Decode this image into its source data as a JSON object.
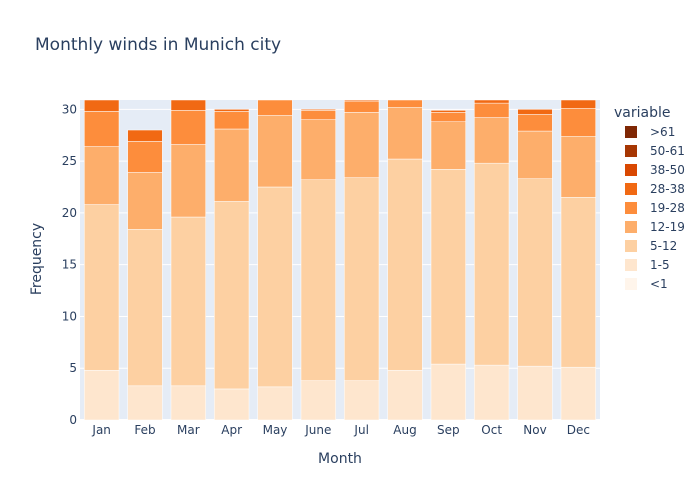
{
  "chart_data": {
    "type": "bar",
    "barmode": "stack",
    "title": "Monthly winds in Munich city",
    "xlabel": "Month",
    "ylabel": "Frequency",
    "ylim": [
      0,
      30.9
    ],
    "yticks": [
      0,
      5,
      10,
      15,
      20,
      25,
      30
    ],
    "legend_title": "variable",
    "legend_position": "right",
    "categories": [
      "Jan",
      "Feb",
      "Mar",
      "Apr",
      "May",
      "June",
      "Jul",
      "Aug",
      "Sep",
      "Oct",
      "Nov",
      "Dec"
    ],
    "series": [
      {
        "name": "<1",
        "color": "#fff5eb",
        "values": [
          0,
          0,
          0,
          0,
          0,
          0,
          0,
          0,
          0,
          0,
          0,
          0
        ]
      },
      {
        "name": "1-5",
        "color": "#fee6ce",
        "values": [
          4.8,
          3.3,
          3.3,
          3.0,
          3.2,
          3.8,
          3.8,
          4.8,
          5.4,
          5.3,
          5.2,
          5.1
        ]
      },
      {
        "name": "5-12",
        "color": "#fdd0a2",
        "values": [
          16.0,
          15.1,
          16.3,
          18.1,
          19.3,
          19.4,
          19.6,
          20.4,
          18.8,
          19.5,
          18.1,
          16.4
        ]
      },
      {
        "name": "12-19",
        "color": "#fdae6b",
        "values": [
          5.6,
          5.5,
          7.0,
          7.0,
          6.9,
          5.8,
          6.3,
          5.0,
          4.6,
          4.4,
          4.6,
          5.9
        ]
      },
      {
        "name": "19-28",
        "color": "#fd8d3c",
        "values": [
          3.4,
          3.0,
          3.3,
          1.7,
          1.5,
          0.9,
          1.1,
          0.7,
          0.9,
          1.4,
          1.6,
          2.7
        ]
      },
      {
        "name": "28-38",
        "color": "#f16913",
        "values": [
          1.1,
          1.1,
          1.0,
          0.2,
          0.2,
          0.1,
          0.2,
          0.1,
          0.2,
          0.3,
          0.5,
          0.8
        ]
      },
      {
        "name": "38-50",
        "color": "#d94801",
        "values": [
          0,
          0,
          0,
          0,
          0,
          0,
          0,
          0,
          0,
          0,
          0,
          0
        ]
      },
      {
        "name": "50-61",
        "color": "#a63603",
        "values": [
          0,
          0,
          0,
          0,
          0,
          0,
          0,
          0,
          0,
          0,
          0,
          0
        ]
      },
      {
        "name": ">61",
        "color": "#7f2704",
        "values": [
          0,
          0,
          0,
          0,
          0,
          0,
          0,
          0,
          0,
          0,
          0,
          0
        ]
      }
    ]
  }
}
